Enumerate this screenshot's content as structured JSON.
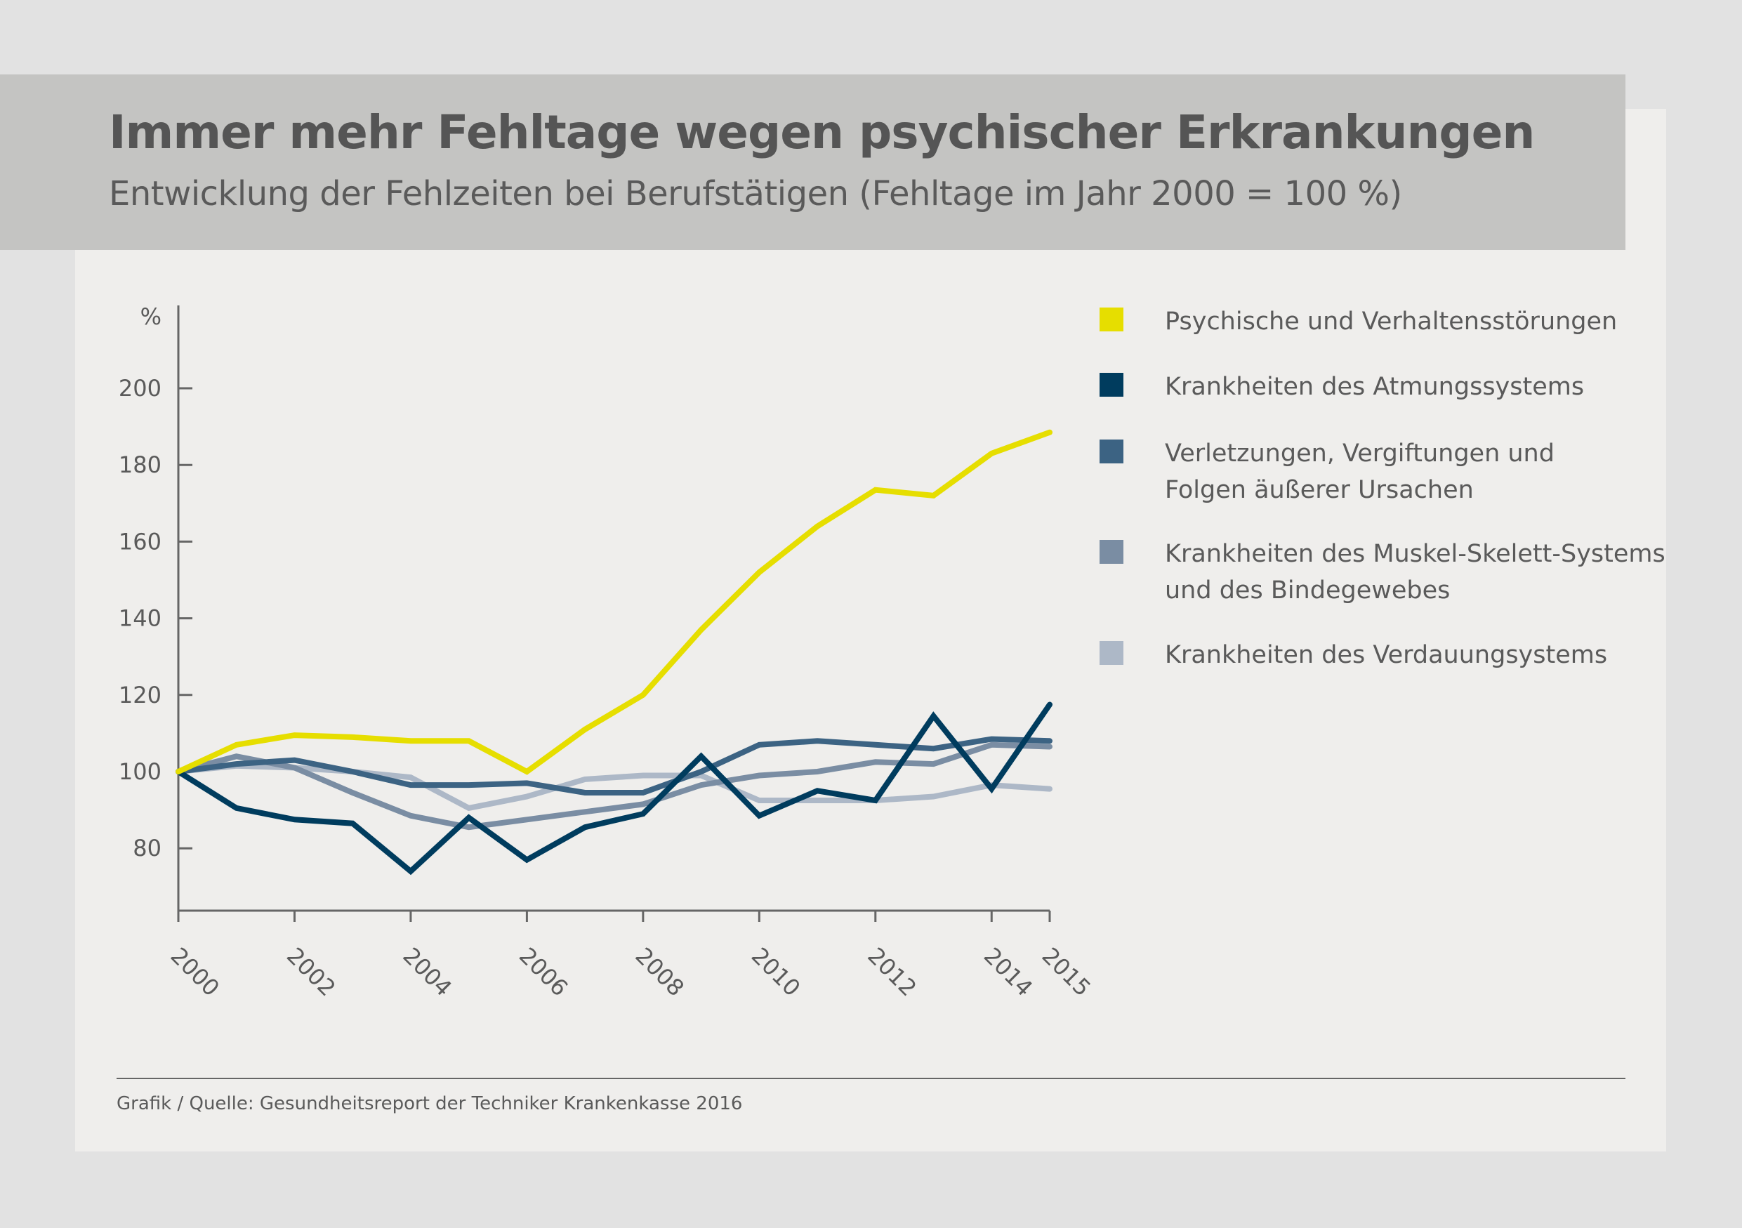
{
  "header": {
    "title": "Immer mehr Fehltage wegen psychischer Erkrankungen",
    "subtitle": "Entwicklung der Fehlzeiten bei Berufstätigen (Fehltage im Jahr 2000 = 100 %)"
  },
  "footer": {
    "source": "Grafik / Quelle: Gesundheitsreport der Techniker Krankenkasse 2016"
  },
  "chart_data": {
    "type": "line",
    "title": "Immer mehr Fehltage wegen psychischer Erkrankungen",
    "subtitle": "Entwicklung der Fehlzeiten bei Berufstätigen (Fehltage im Jahr 2000 = 100 %)",
    "ylabel": "%",
    "xlabel": "",
    "ylim": [
      64,
      220
    ],
    "xlim": [
      2000,
      2015
    ],
    "yticks": [
      80,
      100,
      120,
      140,
      160,
      180,
      200
    ],
    "xticks": [
      2000,
      2002,
      2004,
      2006,
      2008,
      2010,
      2012,
      2014,
      2015
    ],
    "grid": false,
    "legend": "right",
    "x": [
      2000,
      2001,
      2002,
      2003,
      2004,
      2005,
      2006,
      2007,
      2008,
      2009,
      2010,
      2011,
      2012,
      2013,
      2014,
      2015
    ],
    "series": [
      {
        "name": "Psychische und Verhaltensstörungen",
        "color": "#e6de00",
        "values": [
          100,
          107,
          109.5,
          109,
          108,
          108,
          100,
          111,
          120,
          137,
          152,
          164,
          173.5,
          172,
          183,
          188.5
        ]
      },
      {
        "name": "Krankheiten des Atmungssystems",
        "color": "#003c5e",
        "values": [
          100,
          90.5,
          87.5,
          86.5,
          74,
          88,
          77,
          85.5,
          89,
          104,
          88.5,
          95,
          92.5,
          114.5,
          95.5,
          117.5
        ]
      },
      {
        "name": "Verletzungen, Vergiftungen und Folgen äußerer Ursachen",
        "color": "#3c6383",
        "values": [
          100,
          102,
          103,
          100,
          96.5,
          96.5,
          97,
          94.5,
          94.5,
          100,
          107,
          108,
          107,
          106,
          108.5,
          108
        ]
      },
      {
        "name": "Krankheiten des Muskel-Skelett-Systems und des Bindegewebes",
        "color": "#7a8da3",
        "values": [
          100,
          104,
          101,
          94.5,
          88.5,
          85.5,
          87.5,
          89.5,
          91.5,
          96.5,
          99,
          100,
          102.5,
          102,
          107,
          106.5
        ]
      },
      {
        "name": "Krankheiten des Verdauungsystems",
        "color": "#adb8c7",
        "values": [
          100,
          101.5,
          101,
          100,
          98.5,
          90.5,
          93.5,
          98,
          99,
          99,
          92.5,
          92.5,
          92.5,
          93.5,
          96.5,
          95.5
        ]
      }
    ]
  }
}
